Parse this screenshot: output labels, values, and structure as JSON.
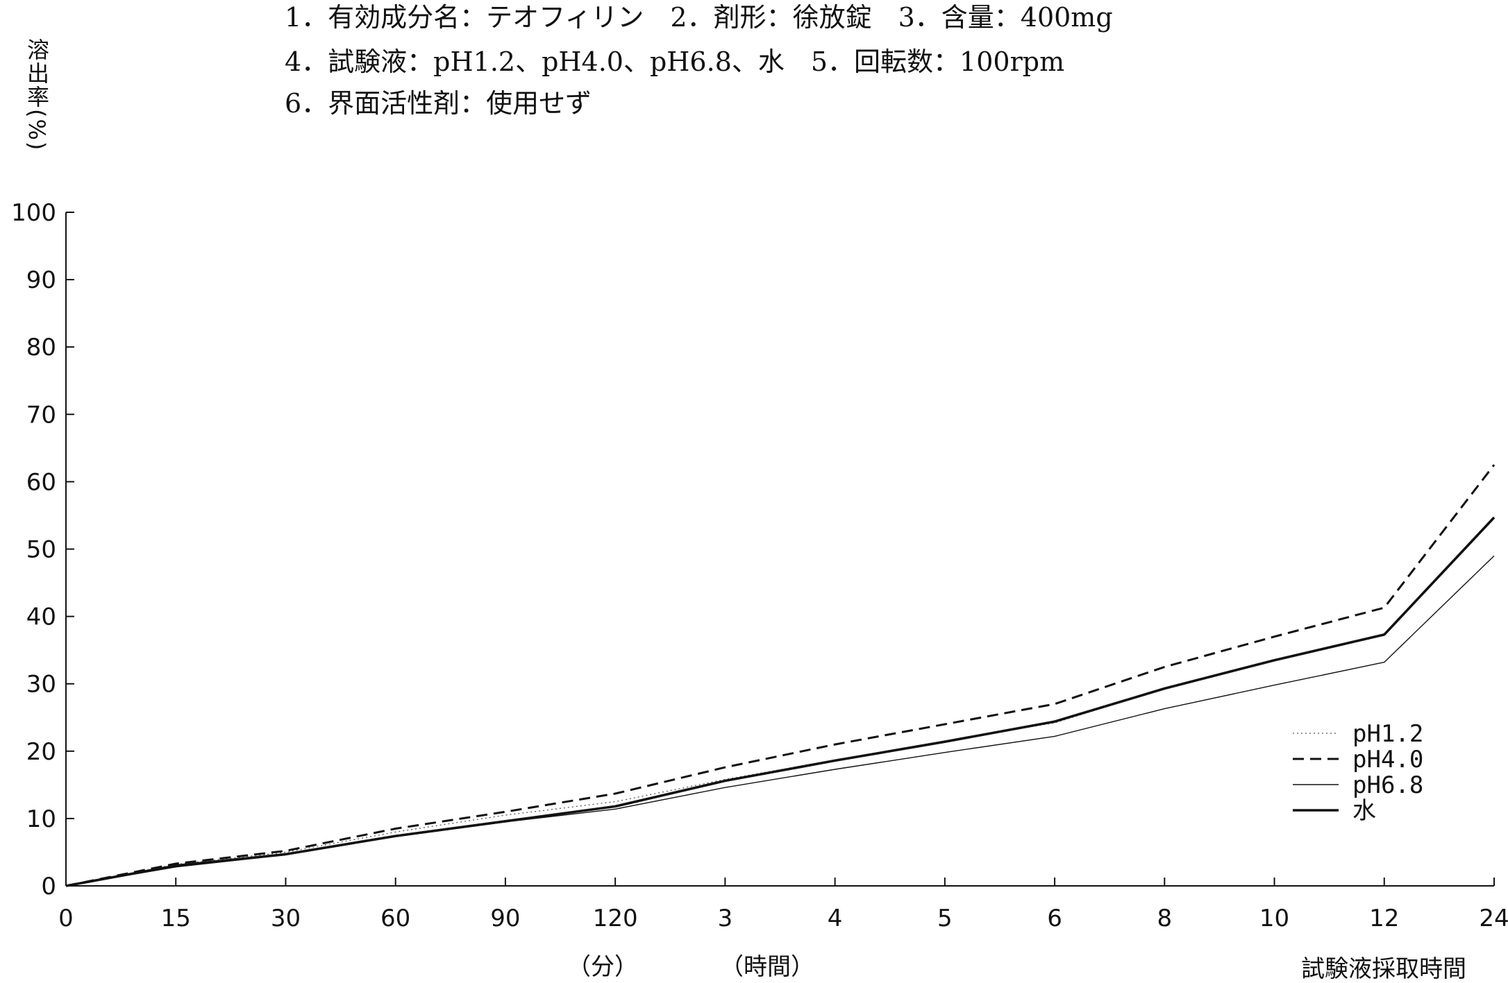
{
  "header": {
    "line1": "1．有効成分名：テオフィリン　2．剤形：徐放錠　3．含量：400mg",
    "line2": "4．試験液：pH1.2、pH4.0、pH6.8、水　5．回転数：100rpm",
    "line3": "6．界面活性剤：使用せず"
  },
  "chart_data": {
    "type": "line",
    "ylabel": "溶出率(%)",
    "xlabel": "試験液採取時間",
    "x_unit_minutes": "（分）",
    "x_unit_hours": "（時間）",
    "categories": [
      "0",
      "15",
      "30",
      "60",
      "90",
      "120",
      "3",
      "4",
      "5",
      "6",
      "8",
      "10",
      "12",
      "24"
    ],
    "ylim": [
      0,
      100
    ],
    "yticks": [
      0,
      10,
      20,
      30,
      40,
      50,
      60,
      70,
      80,
      90,
      100
    ],
    "grid": false,
    "legend_position": "bottom-right",
    "series": [
      {
        "name": "pH1.2",
        "style": "dotted",
        "values": [
          0,
          3.2,
          5.0,
          8.0,
          10.5,
          12.5,
          15.8,
          18.7,
          21.5,
          24.2,
          29.3,
          33.5,
          37.2,
          54.5
        ]
      },
      {
        "name": "pH4.0",
        "style": "dashed",
        "values": [
          0,
          3.3,
          5.2,
          8.5,
          11.0,
          13.7,
          17.6,
          21.0,
          24.0,
          27.0,
          32.5,
          37.0,
          41.3,
          62.5
        ]
      },
      {
        "name": "pH6.8",
        "style": "thin",
        "values": [
          0,
          2.8,
          4.6,
          7.3,
          9.5,
          11.4,
          14.6,
          17.3,
          19.8,
          22.2,
          26.3,
          29.8,
          33.2,
          49.0
        ]
      },
      {
        "name": "水",
        "style": "thick",
        "values": [
          0,
          3.0,
          4.7,
          7.4,
          9.6,
          11.8,
          15.6,
          18.6,
          21.4,
          24.4,
          29.3,
          33.5,
          37.3,
          54.7
        ]
      }
    ]
  }
}
